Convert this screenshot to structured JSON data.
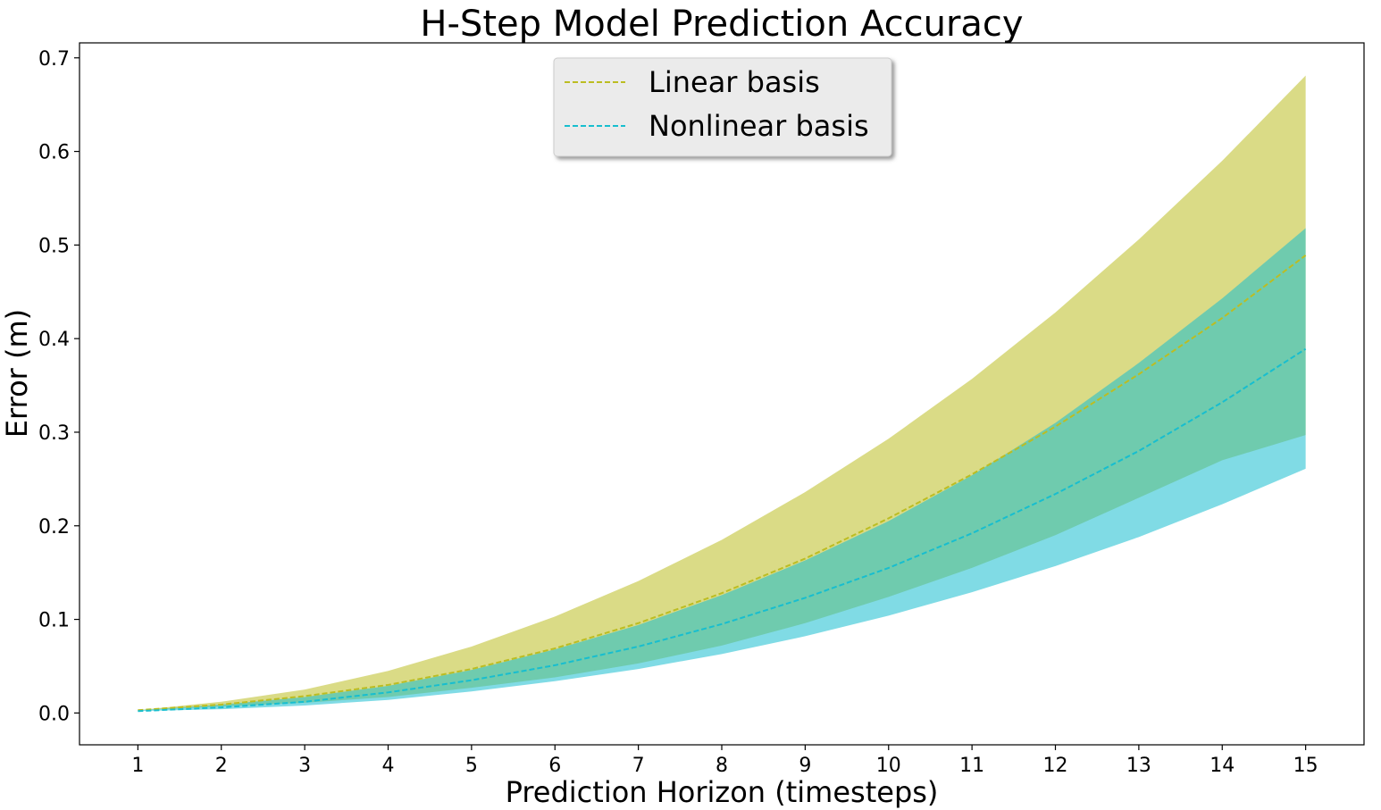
{
  "chart_data": {
    "type": "line",
    "title": "H-Step Model Prediction Accuracy",
    "xlabel": "Prediction Horizon (timesteps)",
    "ylabel": "Error (m)",
    "x": [
      1,
      2,
      3,
      4,
      5,
      6,
      7,
      8,
      9,
      10,
      11,
      12,
      13,
      14,
      15
    ],
    "xlim": [
      0.3,
      15.7
    ],
    "ylim": [
      -0.034,
      0.716
    ],
    "yticks": [
      0.0,
      0.1,
      0.2,
      0.3,
      0.4,
      0.5,
      0.6,
      0.7
    ],
    "ytick_labels": [
      "0.0",
      "0.1",
      "0.2",
      "0.3",
      "0.4",
      "0.5",
      "0.6",
      "0.7"
    ],
    "xtick_labels": [
      "1",
      "2",
      "3",
      "4",
      "5",
      "6",
      "7",
      "8",
      "9",
      "10",
      "11",
      "12",
      "13",
      "14",
      "15"
    ],
    "grid": false,
    "legend_position": "top-center",
    "series": [
      {
        "name": "Linear basis",
        "color": "#bcbd22",
        "band_color": "#bcbd22",
        "line_style": "dashed",
        "values": [
          0.003,
          0.009,
          0.018,
          0.03,
          0.047,
          0.069,
          0.096,
          0.128,
          0.165,
          0.208,
          0.255,
          0.306,
          0.362,
          0.422,
          0.489
        ],
        "upper": [
          0.003,
          0.012,
          0.025,
          0.045,
          0.071,
          0.103,
          0.141,
          0.185,
          0.236,
          0.293,
          0.357,
          0.428,
          0.506,
          0.59,
          0.681
        ],
        "lower": [
          0.003,
          0.007,
          0.011,
          0.017,
          0.027,
          0.038,
          0.053,
          0.072,
          0.096,
          0.124,
          0.155,
          0.19,
          0.23,
          0.27,
          0.297
        ]
      },
      {
        "name": "Nonlinear basis",
        "color": "#17becf",
        "band_color": "#17becf",
        "line_style": "dashed",
        "values": [
          0.002,
          0.006,
          0.012,
          0.022,
          0.035,
          0.051,
          0.071,
          0.095,
          0.123,
          0.155,
          0.192,
          0.234,
          0.28,
          0.332,
          0.389
        ],
        "upper": [
          0.003,
          0.009,
          0.017,
          0.029,
          0.046,
          0.068,
          0.094,
          0.126,
          0.163,
          0.205,
          0.254,
          0.31,
          0.374,
          0.443,
          0.518
        ],
        "lower": [
          0.002,
          0.004,
          0.008,
          0.014,
          0.023,
          0.034,
          0.047,
          0.063,
          0.082,
          0.104,
          0.129,
          0.157,
          0.188,
          0.223,
          0.261
        ]
      }
    ]
  }
}
